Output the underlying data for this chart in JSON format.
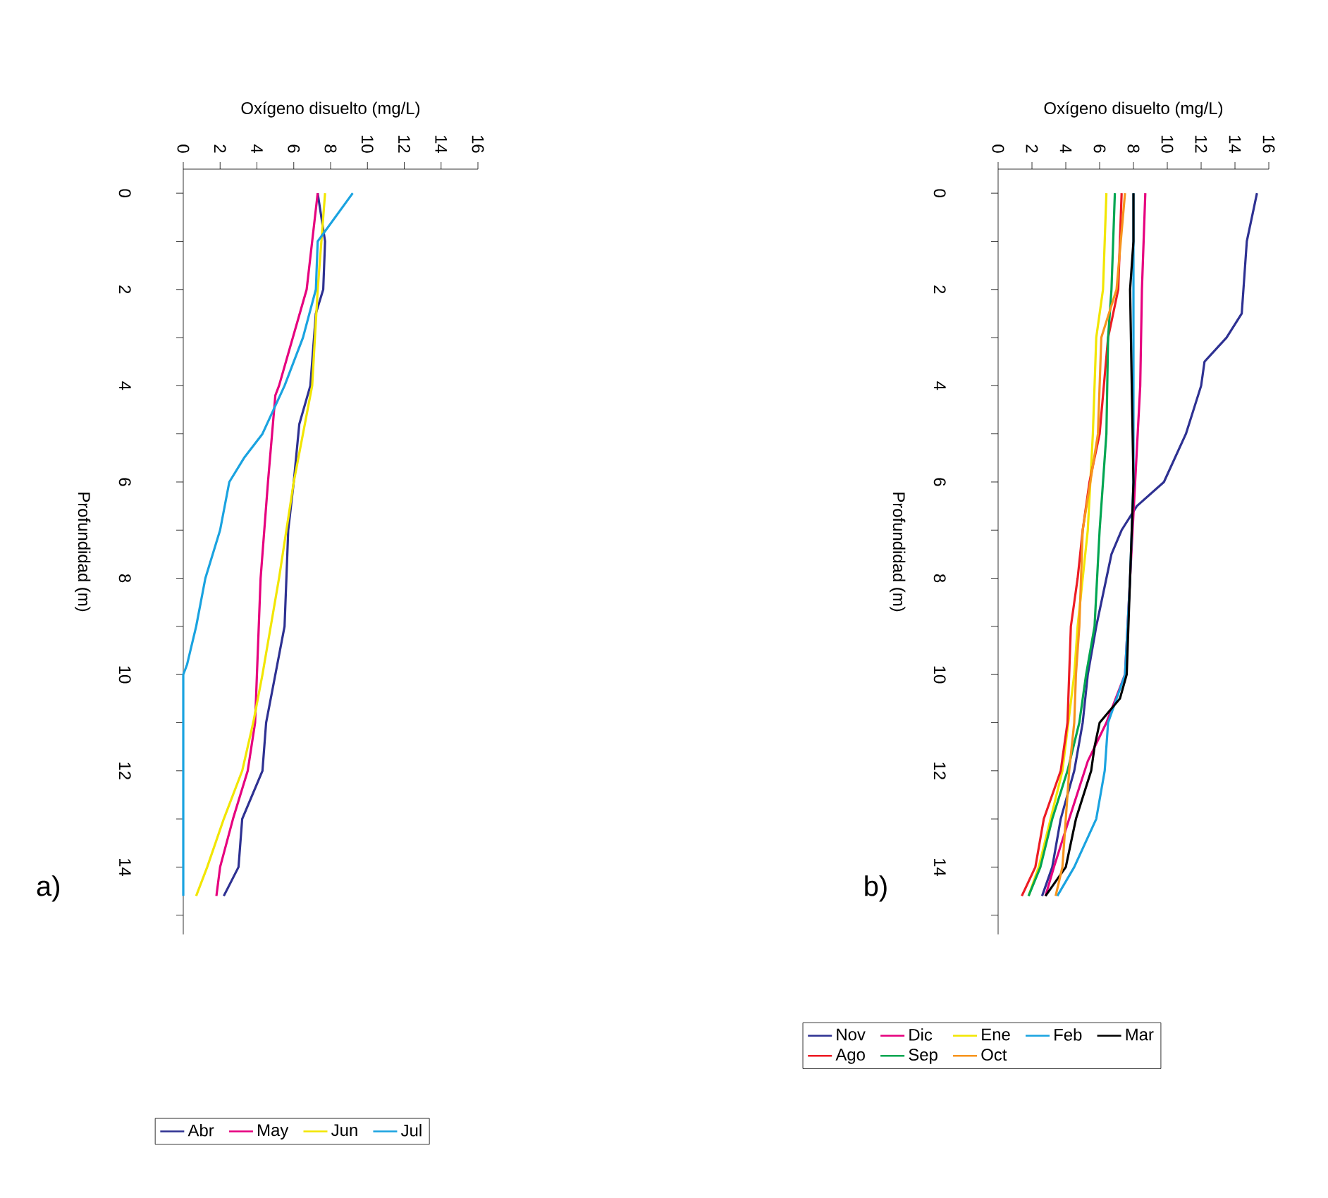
{
  "chart_data": [
    {
      "type": "line",
      "xlabel": "Oxígeno disuelto (mg/L)",
      "ylabel": "Profundidad (m)",
      "annotations": [
        "a)"
      ],
      "xlim": [
        0,
        16
      ],
      "xticks": [
        0,
        2,
        4,
        6,
        8,
        10,
        12,
        14,
        16
      ],
      "ylim": [
        15.4,
        -0.5
      ],
      "yticks": [
        0,
        {
          "value": 1,
          "label": null
        },
        2,
        {
          "value": 3,
          "label": null
        },
        4,
        {
          "value": 5,
          "label": null
        },
        6,
        {
          "value": 7,
          "label": null
        },
        8,
        {
          "value": 9,
          "label": null
        },
        10,
        {
          "value": 11,
          "label": null
        },
        12,
        {
          "value": 13,
          "label": null
        },
        14,
        {
          "value": 15,
          "label": null
        }
      ],
      "legend": "bottom",
      "marker": "none",
      "series": [
        {
          "name": "Abr",
          "color": "#2e3192",
          "x": [
            7.3,
            7.7,
            7.6,
            7.2,
            6.9,
            6.3,
            6.0,
            5.7,
            5.6,
            5.5,
            5.0,
            4.5,
            4.3,
            3.2,
            3.0,
            2.2
          ],
          "values": [
            0,
            1,
            2,
            2.5,
            4,
            4.8,
            6,
            7,
            8,
            9,
            10,
            11,
            12,
            13,
            14,
            14.6
          ]
        },
        {
          "name": "May",
          "color": "#e6007e",
          "x": [
            7.3,
            6.7,
            5.2,
            5.0,
            4.6,
            4.3,
            4.2,
            4.0,
            3.9,
            3.5,
            2.7,
            2.0,
            1.8
          ],
          "values": [
            0,
            2,
            4,
            4.2,
            6,
            7.5,
            8,
            10,
            11,
            12,
            13,
            14,
            14.6
          ]
        },
        {
          "name": "Jun",
          "color": "#f2e600",
          "x": [
            7.7,
            7.3,
            7.0,
            6.0,
            5.2,
            4.3,
            3.8,
            3.2,
            2.2,
            1.3,
            0.7
          ],
          "values": [
            0,
            2,
            4,
            6,
            8,
            10,
            11,
            12,
            13,
            14,
            14.6
          ]
        },
        {
          "name": "Jul",
          "color": "#1aa3e0",
          "x": [
            9.2,
            7.3,
            7.2,
            6.5,
            5.5,
            4.3,
            3.3,
            2.5,
            2.0,
            1.2,
            0.7,
            0.2,
            0,
            0
          ],
          "values": [
            0,
            1,
            2,
            3,
            4,
            5,
            5.5,
            6,
            7,
            8,
            9,
            9.8,
            10,
            14.6
          ]
        }
      ]
    },
    {
      "type": "line",
      "xlabel": "Oxígeno disuelto (mg/L)",
      "ylabel": "Profundidad (m)",
      "annotations": [
        "b)"
      ],
      "xlim": [
        0,
        16
      ],
      "xticks": [
        0,
        2,
        4,
        6,
        8,
        10,
        12,
        14,
        16
      ],
      "ylim": [
        15.4,
        -0.5
      ],
      "yticks": [
        0,
        {
          "value": 1,
          "label": null
        },
        2,
        {
          "value": 3,
          "label": null
        },
        4,
        {
          "value": 5,
          "label": null
        },
        6,
        {
          "value": 7,
          "label": null
        },
        8,
        {
          "value": 9,
          "label": null
        },
        10,
        {
          "value": 11,
          "label": null
        },
        12,
        {
          "value": 13,
          "label": null
        },
        14,
        {
          "value": 15,
          "label": null
        }
      ],
      "legend": "bottom",
      "marker": "none",
      "series": [
        {
          "name": "Nov",
          "color": "#2e3192",
          "x": [
            15.3,
            14.7,
            14.5,
            14.4,
            13.5,
            12.2,
            12.0,
            11.1,
            9.8,
            8.2,
            7.3,
            6.7,
            6.4,
            5.8,
            5.3,
            5.0,
            4.5,
            3.7,
            3.2,
            2.6
          ],
          "values": [
            0,
            1,
            2,
            2.5,
            3,
            3.5,
            4,
            5,
            6,
            6.5,
            7,
            7.5,
            8,
            9,
            10,
            11,
            12,
            13,
            14,
            14.6
          ]
        },
        {
          "name": "Dic",
          "color": "#e6007e",
          "x": [
            8.7,
            8.5,
            8.4,
            7.8,
            7.5,
            6.4,
            5.3,
            4.2,
            3.3,
            2.8
          ],
          "values": [
            0,
            2,
            4,
            8,
            10,
            11,
            11.8,
            13,
            14,
            14.6
          ]
        },
        {
          "name": "Ene",
          "color": "#f2e600",
          "x": [
            6.4,
            6.2,
            5.8,
            5.6,
            5.3,
            4.7,
            4.5,
            3.8,
            3.1,
            2.4,
            1.8
          ],
          "values": [
            0,
            2,
            3,
            5,
            7,
            9,
            10,
            12,
            13,
            14,
            14.6
          ]
        },
        {
          "name": "Feb",
          "color": "#1aa3e0",
          "x": [
            8.0,
            8.0,
            7.8,
            7.5,
            6.5,
            6.3,
            5.8,
            4.5,
            3.5
          ],
          "values": [
            0,
            6,
            8,
            10,
            11,
            12,
            13,
            14,
            14.6
          ]
        },
        {
          "name": "Mar",
          "color": "#000000",
          "x": [
            8.0,
            8.0,
            7.8,
            7.9,
            8.0,
            7.8,
            7.6,
            7.2,
            6.0,
            5.7,
            5.5,
            4.6,
            4.0,
            2.8
          ],
          "values": [
            0,
            1,
            2,
            4,
            6,
            8,
            10,
            10.5,
            11,
            11.5,
            12,
            13,
            14,
            14.6
          ]
        },
        {
          "name": "Ago",
          "color": "#ed1c24",
          "x": [
            7.3,
            7.1,
            6.5,
            6.0,
            5.4,
            5.0,
            4.7,
            4.3,
            4.2,
            4.1,
            3.7,
            2.7,
            2.2,
            1.4
          ],
          "values": [
            0,
            2,
            3,
            5,
            6,
            7,
            8,
            9,
            10,
            11,
            12,
            13,
            14,
            14.6
          ]
        },
        {
          "name": "Sep",
          "color": "#00a651",
          "x": [
            6.9,
            6.7,
            6.5,
            6.4,
            6.0,
            5.7,
            5.2,
            4.8,
            4.1,
            3.2,
            2.5,
            1.8
          ],
          "values": [
            0,
            2,
            3,
            5,
            7,
            9,
            10,
            11,
            12,
            13,
            14,
            14.6
          ]
        },
        {
          "name": "Oct",
          "color": "#f7941d",
          "x": [
            7.5,
            7.0,
            6.1,
            5.9,
            5.0,
            4.8,
            4.6,
            4.5,
            4.2,
            4.0,
            3.8,
            3.4
          ],
          "values": [
            0,
            2,
            3,
            5,
            7,
            9,
            10,
            11,
            12,
            13,
            14,
            14.6
          ]
        }
      ]
    }
  ]
}
